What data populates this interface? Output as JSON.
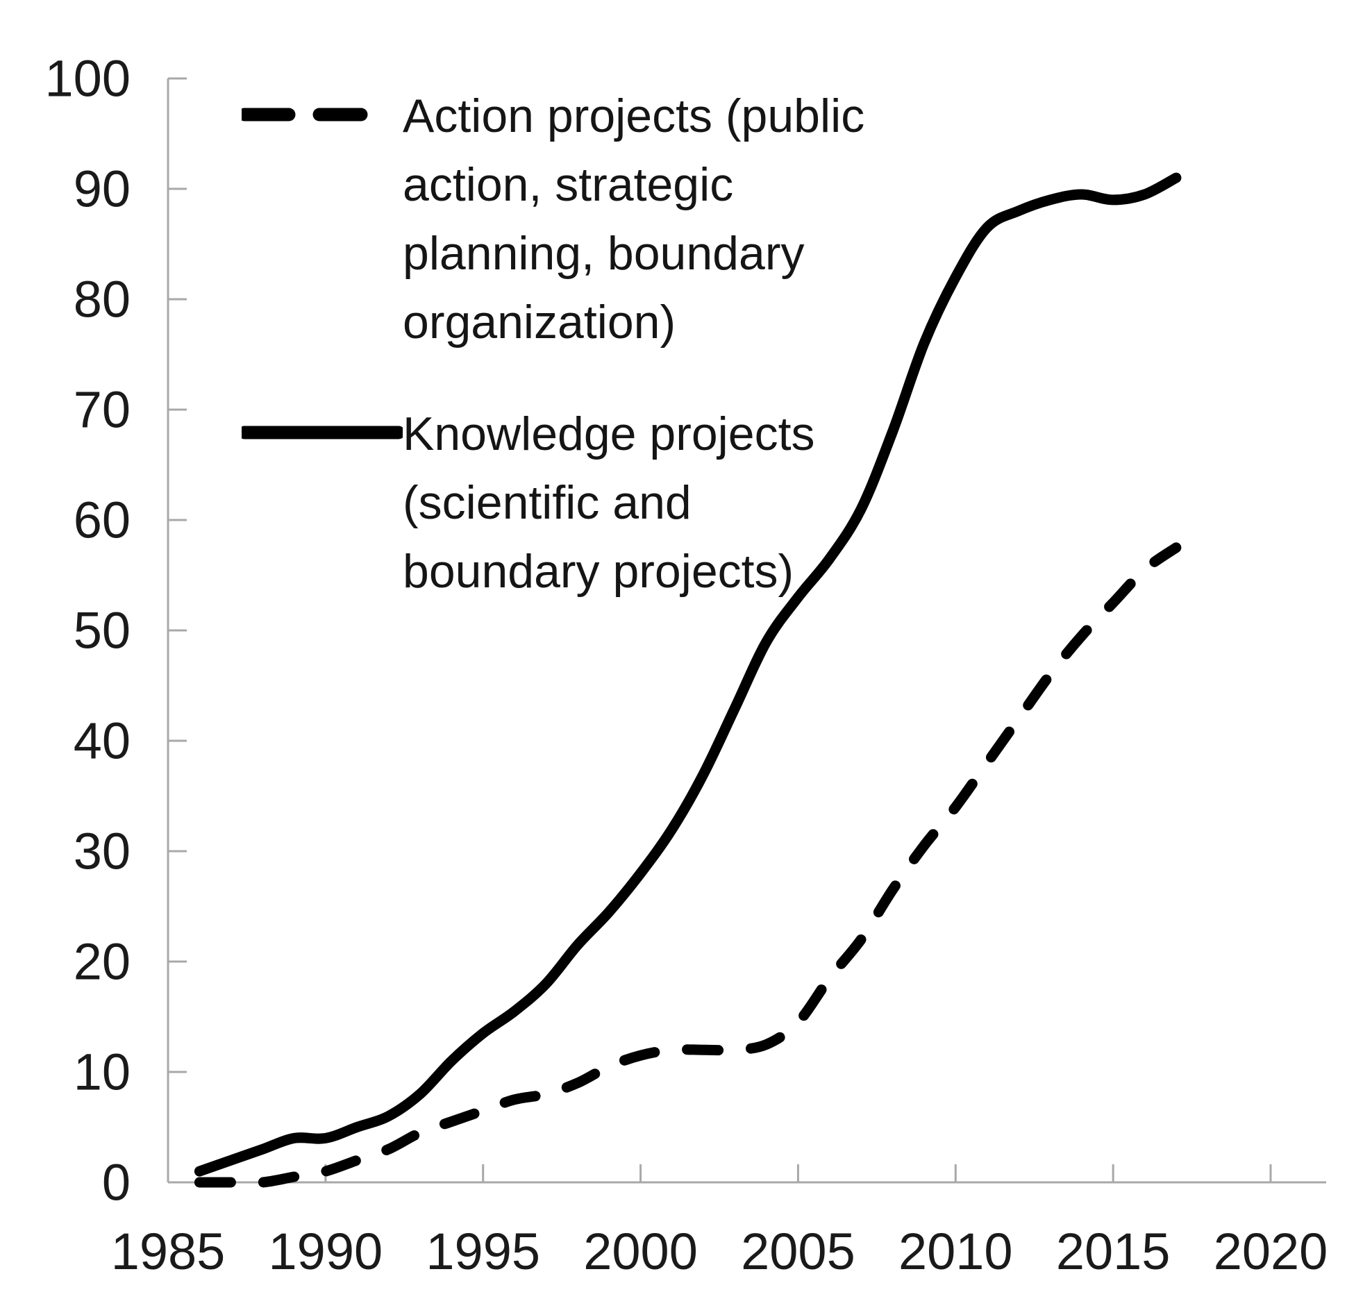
{
  "chart_data": {
    "type": "line",
    "title": "",
    "xlabel": "",
    "ylabel": "",
    "xlim": [
      1985,
      2020
    ],
    "ylim": [
      0,
      100
    ],
    "x_ticks": [
      1985,
      1990,
      1995,
      2000,
      2005,
      2010,
      2015,
      2020
    ],
    "y_ticks": [
      0,
      10,
      20,
      30,
      40,
      50,
      60,
      70,
      80,
      90,
      100
    ],
    "grid": false,
    "legend_position": "inside-top-left",
    "axis_color": "#A8A8A8",
    "text_color": "#1A1A1A",
    "line_color": "#000000",
    "x": [
      1986,
      1987,
      1988,
      1989,
      1990,
      1991,
      1992,
      1993,
      1994,
      1995,
      1996,
      1997,
      1998,
      1999,
      2000,
      2001,
      2002,
      2003,
      2004,
      2005,
      2006,
      2007,
      2008,
      2009,
      2010,
      2011,
      2012,
      2013,
      2014,
      2015,
      2016,
      2017
    ],
    "series": [
      {
        "name": "Action projects (public action, strategic planning, boundary organization)",
        "name_lines": [
          "Action projects (public",
          "action, strategic",
          "planning, boundary",
          "organization)"
        ],
        "style": "dashed",
        "color": "#000000",
        "values": [
          0,
          0,
          0,
          0.5,
          1,
          2,
          3,
          4.5,
          5.5,
          6.5,
          7.5,
          8,
          9,
          10.5,
          11.5,
          12,
          12,
          12,
          12.5,
          14.5,
          18.5,
          22,
          26.5,
          30.5,
          34,
          38,
          42,
          46,
          49.5,
          52.5,
          55.5,
          57.5
        ]
      },
      {
        "name": "Knowledge projects (scientific and boundary projects)",
        "name_lines": [
          "Knowledge projects",
          "(scientific and",
          "boundary projects)"
        ],
        "style": "solid",
        "color": "#000000",
        "values": [
          1,
          2,
          3,
          4,
          4,
          5,
          6,
          8,
          11,
          13.5,
          15.5,
          18,
          21.5,
          24.5,
          28,
          32,
          37,
          43,
          49,
          53,
          56.5,
          61,
          68,
          76,
          82,
          86.5,
          88,
          89,
          89.5,
          89,
          89.5,
          91
        ]
      }
    ]
  }
}
